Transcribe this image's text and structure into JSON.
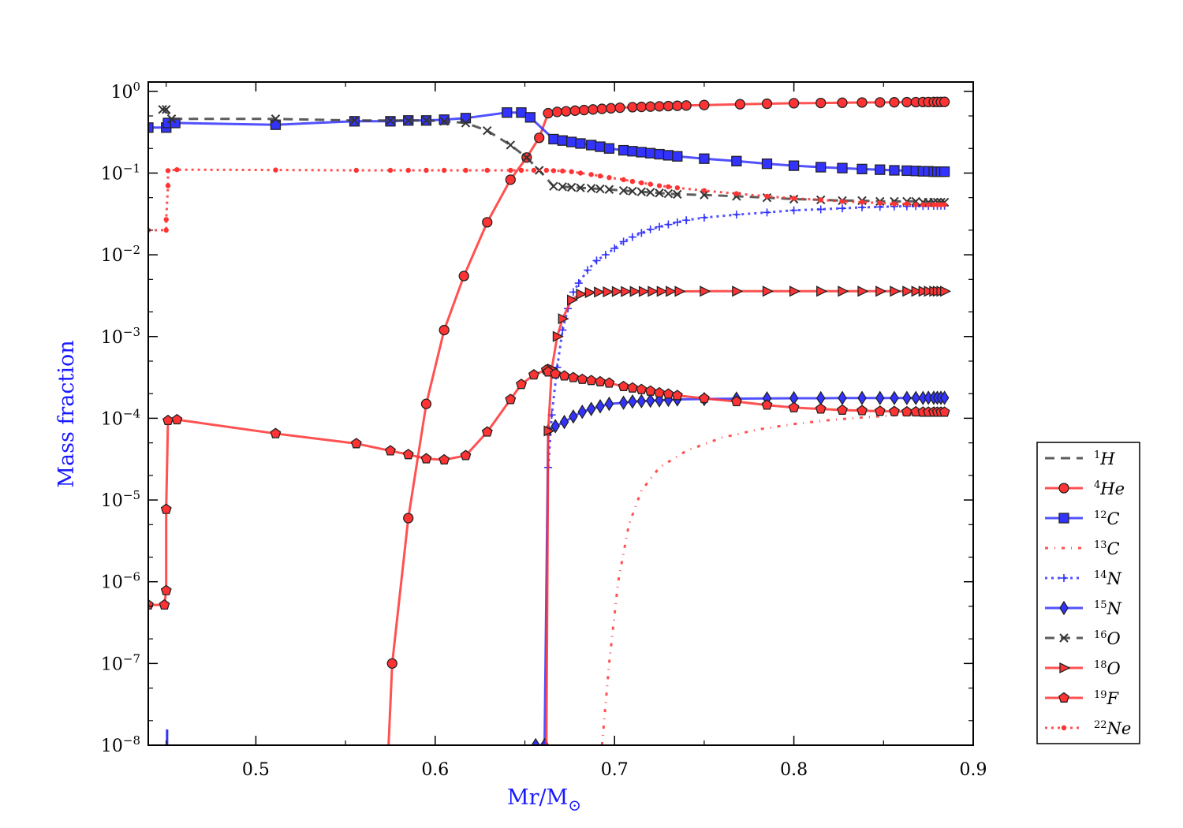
{
  "chart_data": {
    "type": "line",
    "title": "",
    "xlabel": "Mr/M",
    "xlabel_sub": "⊙",
    "ylabel": "Mass fraction",
    "xlim": [
      0.44,
      0.9
    ],
    "ylim": [
      1e-08,
      1.3
    ],
    "yscale": "log",
    "grid": false,
    "legend_position": "right",
    "x_ticks": [
      0.5,
      0.6,
      0.7,
      0.8,
      0.9
    ],
    "x_tick_labels": [
      "0.5",
      "0.6",
      "0.7",
      "0.8",
      "0.9"
    ],
    "y_tick_exponents": [
      "0",
      "−1",
      "−2",
      "−3",
      "−4",
      "−5",
      "−6",
      "−7",
      "−8"
    ],
    "series": [
      {
        "name": "H",
        "label_sup": "1",
        "color": "#404040",
        "dash": "12,8",
        "marker": "none",
        "x": [],
        "y": []
      },
      {
        "name": "He",
        "label_sup": "4",
        "color": "#ff3333",
        "dash": "",
        "marker": "circle",
        "x": [
          0.574,
          0.576,
          0.585,
          0.595,
          0.605,
          0.616,
          0.629,
          0.642,
          0.651,
          0.658,
          0.663,
          0.668,
          0.673,
          0.678,
          0.683,
          0.688,
          0.693,
          0.698,
          0.703,
          0.71,
          0.715,
          0.72,
          0.725,
          0.73,
          0.735,
          0.74,
          0.75,
          0.77,
          0.785,
          0.8,
          0.815,
          0.827,
          0.838,
          0.848,
          0.856,
          0.863,
          0.868,
          0.872,
          0.875,
          0.878,
          0.88,
          0.882,
          0.884
        ],
        "y": [
          1e-08,
          1e-07,
          6e-06,
          0.00015,
          0.0012,
          0.0055,
          0.025,
          0.083,
          0.155,
          0.27,
          0.54,
          0.56,
          0.57,
          0.58,
          0.59,
          0.6,
          0.61,
          0.62,
          0.63,
          0.64,
          0.645,
          0.65,
          0.655,
          0.66,
          0.665,
          0.67,
          0.68,
          0.695,
          0.705,
          0.715,
          0.72,
          0.725,
          0.73,
          0.732,
          0.735,
          0.737,
          0.738,
          0.74,
          0.74,
          0.741,
          0.742,
          0.742,
          0.743
        ]
      },
      {
        "name": "C",
        "label_sup": "12",
        "color": "#3333ff",
        "dash": "",
        "marker": "square",
        "x": [
          0.44,
          0.45,
          0.451,
          0.455,
          0.511,
          0.555,
          0.575,
          0.585,
          0.595,
          0.605,
          0.617,
          0.64,
          0.648,
          0.653,
          0.666,
          0.671,
          0.676,
          0.681,
          0.687,
          0.692,
          0.697,
          0.705,
          0.71,
          0.715,
          0.72,
          0.725,
          0.73,
          0.735,
          0.75,
          0.768,
          0.785,
          0.8,
          0.815,
          0.827,
          0.838,
          0.848,
          0.856,
          0.863,
          0.868,
          0.872,
          0.875,
          0.878,
          0.88,
          0.882,
          0.884
        ],
        "y": [
          0.36,
          0.36,
          0.41,
          0.41,
          0.39,
          0.43,
          0.43,
          0.44,
          0.44,
          0.45,
          0.47,
          0.55,
          0.55,
          0.48,
          0.26,
          0.25,
          0.24,
          0.23,
          0.22,
          0.21,
          0.2,
          0.19,
          0.185,
          0.18,
          0.175,
          0.17,
          0.165,
          0.16,
          0.15,
          0.14,
          0.13,
          0.123,
          0.118,
          0.115,
          0.112,
          0.11,
          0.108,
          0.107,
          0.106,
          0.105,
          0.105,
          0.104,
          0.104,
          0.104,
          0.104
        ]
      },
      {
        "name": "C",
        "label_sup": "13",
        "color": "#ff3333",
        "dash": "4,8,1,8",
        "marker": "none",
        "x": [
          0.693,
          0.697,
          0.702,
          0.708,
          0.715,
          0.725,
          0.74,
          0.76,
          0.78,
          0.8,
          0.82,
          0.84,
          0.86,
          0.884
        ],
        "y": [
          1e-08,
          1e-07,
          1e-06,
          5e-06,
          1.3e-05,
          2.5e-05,
          4e-05,
          5.8e-05,
          7.3e-05,
          8.5e-05,
          9.5e-05,
          0.000103,
          0.00011,
          0.000117
        ]
      },
      {
        "name": "N",
        "label_sup": "14",
        "color": "#3333ff",
        "dash": "3,5",
        "marker": "plus",
        "x": [
          0.663,
          0.665,
          0.668,
          0.671,
          0.674,
          0.677,
          0.68,
          0.685,
          0.69,
          0.695,
          0.7,
          0.705,
          0.71,
          0.715,
          0.72,
          0.725,
          0.73,
          0.735,
          0.74,
          0.75,
          0.768,
          0.785,
          0.8,
          0.815,
          0.827,
          0.838,
          0.848,
          0.856,
          0.863,
          0.868,
          0.872,
          0.875,
          0.878,
          0.88,
          0.882,
          0.884
        ],
        "y": [
          2.5e-05,
          0.00011,
          0.00042,
          0.0012,
          0.0022,
          0.0035,
          0.0045,
          0.0065,
          0.0085,
          0.01,
          0.012,
          0.0145,
          0.0165,
          0.0185,
          0.0205,
          0.022,
          0.0235,
          0.025,
          0.0265,
          0.0285,
          0.031,
          0.033,
          0.035,
          0.036,
          0.037,
          0.038,
          0.0385,
          0.039,
          0.0392,
          0.0394,
          0.0395,
          0.0396,
          0.0397,
          0.0397,
          0.0398,
          0.0398
        ]
      },
      {
        "name": "N",
        "label_sup": "15",
        "color": "#3333ff",
        "dash": "",
        "marker": "diamond",
        "x": [
          0.656,
          0.661,
          0.663,
          0.667,
          0.672,
          0.677,
          0.682,
          0.687,
          0.692,
          0.697,
          0.705,
          0.71,
          0.715,
          0.72,
          0.725,
          0.73,
          0.735,
          0.75,
          0.768,
          0.785,
          0.8,
          0.815,
          0.827,
          0.838,
          0.848,
          0.856,
          0.863,
          0.868,
          0.872,
          0.875,
          0.878,
          0.88,
          0.882,
          0.884
        ],
        "y": [
          1e-08,
          1e-08,
          7e-05,
          8e-05,
          9e-05,
          0.000105,
          0.00012,
          0.00013,
          0.00014,
          0.00015,
          0.000155,
          0.00016,
          0.000162,
          0.000164,
          0.000166,
          0.000168,
          0.00017,
          0.000172,
          0.000174,
          0.000175,
          0.000176,
          0.000176,
          0.000177,
          0.000177,
          0.000177,
          0.000177,
          0.000177,
          0.000177,
          0.000177,
          0.000178,
          0.000178,
          0.000178,
          0.000178,
          0.000178
        ]
      },
      {
        "name": "O",
        "label_sup": "16",
        "color": "#404040",
        "dash": "12,8",
        "marker": "x",
        "x": [
          0.448,
          0.45,
          0.453,
          0.511,
          0.555,
          0.575,
          0.585,
          0.595,
          0.605,
          0.617,
          0.629,
          0.642,
          0.651,
          0.658,
          0.666,
          0.671,
          0.676,
          0.681,
          0.687,
          0.692,
          0.697,
          0.705,
          0.71,
          0.715,
          0.72,
          0.725,
          0.73,
          0.735,
          0.75,
          0.768,
          0.785,
          0.8,
          0.815,
          0.827,
          0.838,
          0.848,
          0.856,
          0.863,
          0.868,
          0.872,
          0.875,
          0.878,
          0.88,
          0.882,
          0.884
        ],
        "y": [
          0.6,
          0.6,
          0.46,
          0.46,
          0.44,
          0.44,
          0.44,
          0.44,
          0.43,
          0.41,
          0.33,
          0.22,
          0.155,
          0.108,
          0.069,
          0.068,
          0.067,
          0.066,
          0.065,
          0.064,
          0.063,
          0.061,
          0.06,
          0.059,
          0.058,
          0.057,
          0.056,
          0.055,
          0.054,
          0.052,
          0.05,
          0.048,
          0.047,
          0.046,
          0.046,
          0.045,
          0.045,
          0.045,
          0.045,
          0.044,
          0.044,
          0.044,
          0.044,
          0.044,
          0.044
        ]
      },
      {
        "name": "O",
        "label_sup": "18",
        "color": "#ff3333",
        "dash": "",
        "marker": "triangle-right",
        "x": [
          0.662,
          0.663,
          0.665,
          0.668,
          0.671,
          0.676,
          0.681,
          0.686,
          0.691,
          0.696,
          0.701,
          0.706,
          0.711,
          0.716,
          0.721,
          0.726,
          0.731,
          0.736,
          0.75,
          0.768,
          0.785,
          0.8,
          0.815,
          0.827,
          0.838,
          0.848,
          0.856,
          0.863,
          0.868,
          0.872,
          0.875,
          0.878,
          0.88,
          0.882,
          0.884
        ],
        "y": [
          1e-08,
          7e-05,
          0.0004,
          0.001,
          0.00165,
          0.0028,
          0.0033,
          0.00345,
          0.0035,
          0.00352,
          0.00355,
          0.00355,
          0.00356,
          0.00356,
          0.00357,
          0.00357,
          0.00357,
          0.00357,
          0.00358,
          0.00358,
          0.00358,
          0.00358,
          0.00358,
          0.00358,
          0.00358,
          0.00358,
          0.00358,
          0.00358,
          0.00358,
          0.00358,
          0.00358,
          0.00358,
          0.00358,
          0.00358,
          0.00358
        ]
      },
      {
        "name": "F",
        "label_sup": "19",
        "color": "#ff3333",
        "dash": "",
        "marker": "pentagon",
        "x": [
          0.44,
          0.449,
          0.45,
          0.45,
          0.451,
          0.456,
          0.511,
          0.556,
          0.575,
          0.585,
          0.595,
          0.605,
          0.617,
          0.629,
          0.642,
          0.648,
          0.655,
          0.662,
          0.663,
          0.667,
          0.672,
          0.677,
          0.682,
          0.687,
          0.692,
          0.697,
          0.705,
          0.71,
          0.715,
          0.72,
          0.725,
          0.73,
          0.735,
          0.75,
          0.768,
          0.785,
          0.8,
          0.815,
          0.827,
          0.838,
          0.848,
          0.856,
          0.863,
          0.868,
          0.872,
          0.875,
          0.878,
          0.88,
          0.882,
          0.884
        ],
        "y": [
          5.2e-07,
          5.2e-07,
          7.8e-07,
          7.7e-06,
          9.4e-05,
          9.6e-05,
          6.5e-05,
          4.9e-05,
          4e-05,
          3.6e-05,
          3.2e-05,
          3.1e-05,
          3.5e-05,
          6.8e-05,
          0.00017,
          0.00026,
          0.00034,
          0.00039,
          0.00037,
          0.00035,
          0.00033,
          0.000315,
          0.0003,
          0.00029,
          0.00028,
          0.00027,
          0.000245,
          0.000235,
          0.000225,
          0.000215,
          0.000205,
          0.000198,
          0.00019,
          0.000175,
          0.00016,
          0.000145,
          0.000135,
          0.00013,
          0.000126,
          0.000124,
          0.000122,
          0.000121,
          0.00012,
          0.00012,
          0.000119,
          0.000119,
          0.000119,
          0.000119,
          0.000119,
          0.000119
        ]
      },
      {
        "name": "Ne",
        "label_sup": "22",
        "color": "#ff3333",
        "dash": "3,5",
        "marker": "dot",
        "x": [
          0.44,
          0.45,
          0.45,
          0.451,
          0.451,
          0.456,
          0.511,
          0.556,
          0.575,
          0.585,
          0.595,
          0.605,
          0.617,
          0.629,
          0.642,
          0.648,
          0.655,
          0.662,
          0.666,
          0.671,
          0.676,
          0.681,
          0.687,
          0.692,
          0.697,
          0.705,
          0.71,
          0.715,
          0.72,
          0.725,
          0.73,
          0.735,
          0.75,
          0.768,
          0.785,
          0.8,
          0.815,
          0.827,
          0.838,
          0.848,
          0.856,
          0.863,
          0.868,
          0.872,
          0.875,
          0.878,
          0.88,
          0.882,
          0.884
        ],
        "y": [
          0.02,
          0.02,
          0.027,
          0.07,
          0.107,
          0.11,
          0.109,
          0.108,
          0.108,
          0.108,
          0.108,
          0.108,
          0.108,
          0.108,
          0.108,
          0.108,
          0.108,
          0.108,
          0.107,
          0.106,
          0.104,
          0.1,
          0.096,
          0.092,
          0.088,
          0.083,
          0.079,
          0.076,
          0.073,
          0.07,
          0.068,
          0.066,
          0.061,
          0.056,
          0.052,
          0.049,
          0.047,
          0.045,
          0.044,
          0.043,
          0.042,
          0.042,
          0.041,
          0.041,
          0.041,
          0.041,
          0.041,
          0.041,
          0.041
        ]
      }
    ]
  }
}
